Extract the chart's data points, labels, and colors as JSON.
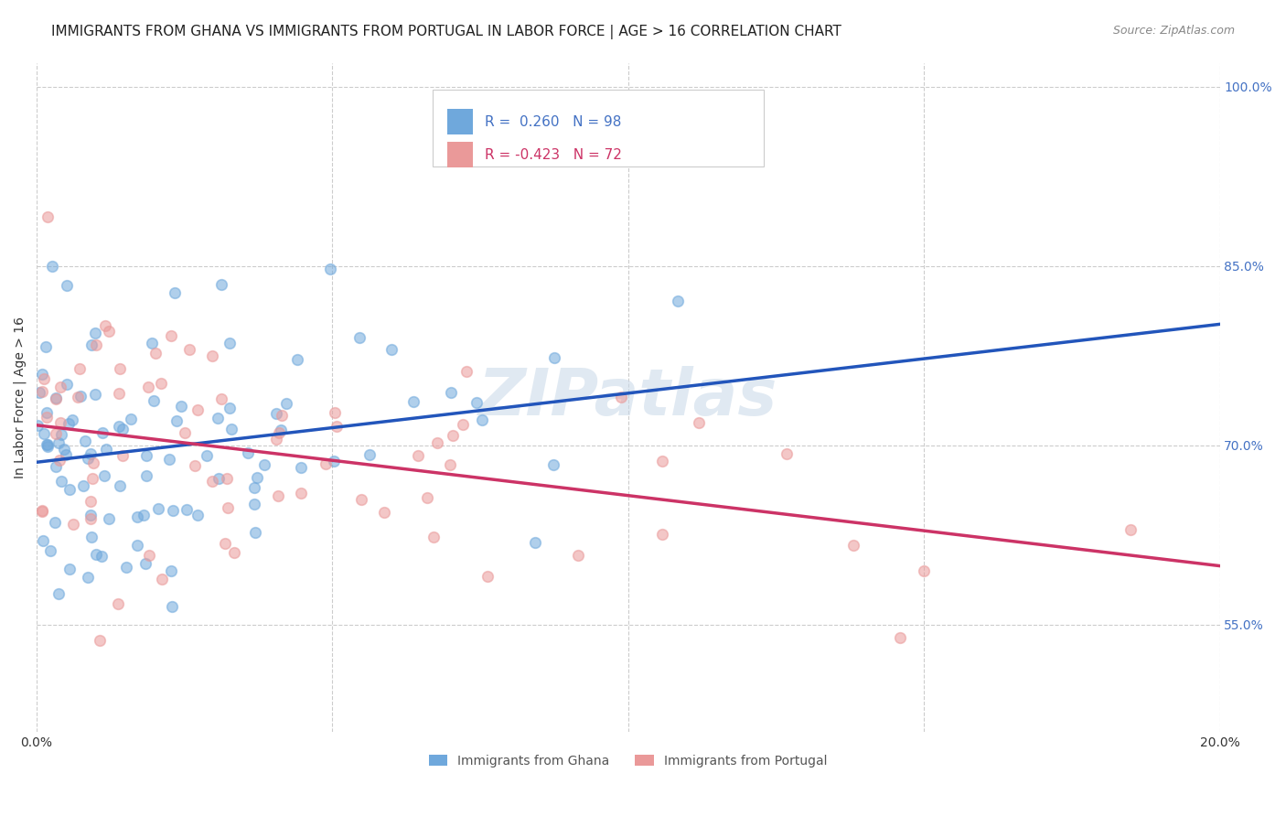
{
  "title": "IMMIGRANTS FROM GHANA VS IMMIGRANTS FROM PORTUGAL IN LABOR FORCE | AGE > 16 CORRELATION CHART",
  "source": "Source: ZipAtlas.com",
  "xlabel": "",
  "ylabel": "In Labor Force | Age > 16",
  "x_min": 0.0,
  "x_max": 0.2,
  "y_min": 0.46,
  "y_max": 1.02,
  "ghana_R": 0.26,
  "ghana_N": 98,
  "portugal_R": -0.423,
  "portugal_N": 72,
  "ghana_color": "#6fa8dc",
  "portugal_color": "#ea9999",
  "ghana_line_color": "#2255bb",
  "portugal_line_color": "#cc3366",
  "ghana_seed": 42,
  "portugal_seed": 99,
  "legend_R1": "R =  0.260",
  "legend_N1": "N = 98",
  "legend_R2": "R = -0.423",
  "legend_N2": "N = 72",
  "legend_label1": "Immigrants from Ghana",
  "legend_label2": "Immigrants from Portugal",
  "watermark": "ZIPatlas",
  "grid_color": "#cccccc",
  "background_color": "#ffffff",
  "title_fontsize": 11,
  "axis_label_fontsize": 10,
  "tick_fontsize": 10,
  "source_color": "#888888",
  "title_color": "#222222",
  "tick_color": "#4472c4",
  "text_color": "#555555"
}
